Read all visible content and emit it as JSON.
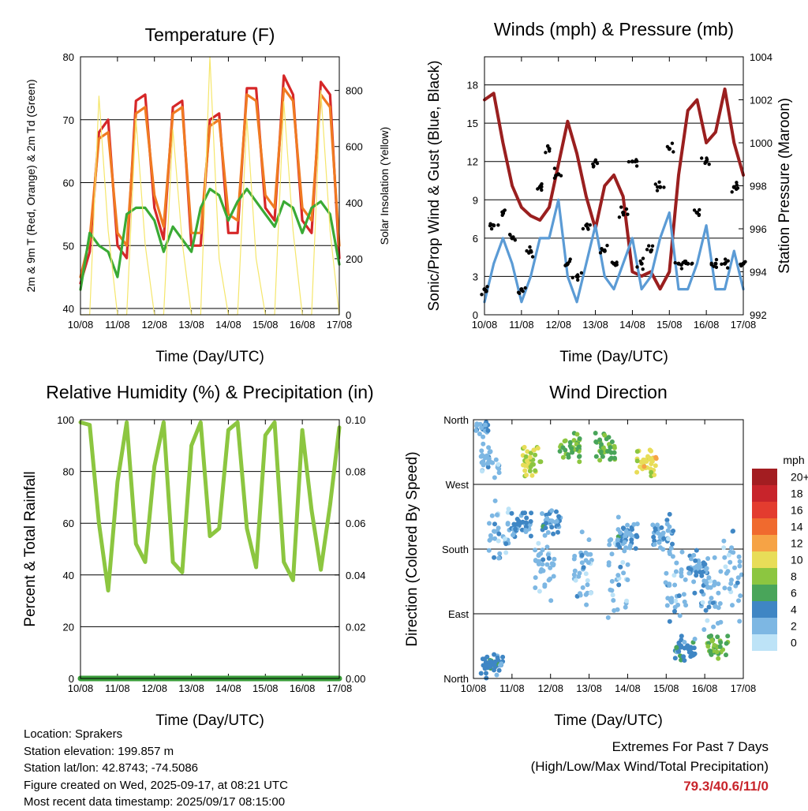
{
  "x_tick_labels": [
    "10/08",
    "11/08",
    "12/08",
    "13/08",
    "14/08",
    "15/08",
    "16/08",
    "17/08"
  ],
  "chart_data": [
    {
      "type": "line",
      "title": "Temperature (F)",
      "xlabel": "Time (Day/UTC)",
      "ylabel": "2m & 9m T (Red, Orange) & 2m Td (Green)",
      "ylabel_right": "Solar Insolation (Yellow)",
      "ylim": [
        39,
        80
      ],
      "yticks": [
        40,
        50,
        60,
        70,
        80
      ],
      "ylim_right": [
        0,
        920
      ],
      "yticks_right": [
        0,
        200,
        400,
        600,
        800
      ],
      "x": [
        "10/08 00",
        "10/08 06",
        "10/08 12",
        "10/08 18",
        "11/08 00",
        "11/08 06",
        "11/08 12",
        "11/08 18",
        "12/08 00",
        "12/08 06",
        "12/08 12",
        "12/08 18",
        "13/08 00",
        "13/08 06",
        "13/08 12",
        "13/08 18",
        "14/08 00",
        "14/08 06",
        "14/08 12",
        "14/08 18",
        "15/08 00",
        "15/08 06",
        "15/08 12",
        "15/08 18",
        "16/08 00",
        "16/08 06",
        "16/08 12",
        "16/08 18",
        "17/08 00"
      ],
      "series": [
        {
          "color": "#d62728",
          "values": [
            44,
            49,
            68,
            70,
            50,
            48,
            73,
            74,
            56,
            51,
            72,
            73,
            50,
            50,
            70,
            71,
            52,
            52,
            75,
            75,
            56,
            54,
            77,
            74,
            54,
            52,
            76,
            74,
            48
          ]
        },
        {
          "color": "#f07a22",
          "values": [
            45,
            51,
            67,
            68,
            52,
            50,
            71,
            72,
            58,
            53,
            71,
            72,
            52,
            52,
            69,
            70,
            55,
            54,
            74,
            73,
            58,
            56,
            75,
            73,
            56,
            54,
            74,
            72,
            50
          ]
        },
        {
          "color": "#3aaa35",
          "values": [
            43,
            52,
            50,
            49,
            45,
            55,
            56,
            56,
            54,
            49,
            53,
            51,
            49,
            56,
            59,
            58,
            54,
            57,
            59,
            57,
            55,
            53,
            57,
            56,
            52,
            56,
            57,
            55,
            47
          ]
        },
        {
          "color": "#f5e66b",
          "axis": "right",
          "values": [
            0,
            0,
            780,
            300,
            0,
            0,
            700,
            250,
            0,
            0,
            660,
            260,
            0,
            0,
            920,
            200,
            0,
            0,
            700,
            200,
            0,
            0,
            760,
            300,
            0,
            0,
            800,
            300,
            0
          ]
        }
      ]
    },
    {
      "type": "line",
      "title": "Winds (mph) & Pressure (mb)",
      "xlabel": "Time (Day/UTC)",
      "ylabel": "Sonic/Prop Wind & Gust (Blue, Black)",
      "ylabel_right": "Station Pressure (Maroon)",
      "ylim": [
        0,
        20.2
      ],
      "yticks": [
        0,
        3,
        6,
        9,
        12,
        15,
        18
      ],
      "ylim_right": [
        992,
        1004
      ],
      "yticks_right": [
        992,
        994,
        996,
        998,
        1000,
        1002,
        1004
      ],
      "x": [
        "10/08 00",
        "10/08 06",
        "10/08 12",
        "10/08 18",
        "11/08 00",
        "11/08 06",
        "11/08 12",
        "11/08 18",
        "12/08 00",
        "12/08 06",
        "12/08 12",
        "12/08 18",
        "13/08 00",
        "13/08 06",
        "13/08 12",
        "13/08 18",
        "14/08 00",
        "14/08 06",
        "14/08 12",
        "14/08 18",
        "15/08 00",
        "15/08 06",
        "15/08 12",
        "15/08 18",
        "16/08 00",
        "16/08 06",
        "16/08 12",
        "16/08 18",
        "17/08 00"
      ],
      "series": [
        {
          "color": "#9a1f1f",
          "axis": "right",
          "values": [
            1002,
            1002.3,
            1000,
            998,
            997,
            996.6,
            996.4,
            997,
            999,
            1001,
            999.5,
            997.5,
            996,
            998,
            998.5,
            997.5,
            994,
            993.8,
            994,
            993.2,
            994,
            998.5,
            1001.5,
            1002,
            1000,
            1000.5,
            1002.5,
            1000,
            998.5
          ]
        },
        {
          "color": "#5b9bd5",
          "values": [
            1,
            4,
            6,
            4,
            1,
            3,
            6,
            6,
            9,
            3,
            1,
            4,
            7,
            3,
            2,
            4,
            6,
            2,
            3,
            6,
            8,
            2,
            2,
            4,
            7,
            2,
            2,
            5,
            2
          ]
        },
        {
          "color": "#000000",
          "markers": "dots",
          "values": [
            2,
            7,
            8,
            6,
            2,
            5,
            10,
            13,
            11,
            4,
            3,
            7,
            12,
            5,
            4,
            8,
            12,
            4,
            5,
            10,
            13,
            4,
            4,
            8,
            12,
            4,
            4,
            10,
            4
          ]
        }
      ]
    },
    {
      "type": "line",
      "title": "Relative Humidity (%) & Precipitation (in)",
      "xlabel": "Time (Day/UTC)",
      "ylabel": "Percent & Total Rainfall",
      "ylim": [
        0,
        100
      ],
      "yticks": [
        0,
        20,
        40,
        60,
        80,
        100
      ],
      "ylim_right": [
        0,
        0.1
      ],
      "yticks_right": [
        "0.00",
        "0.02",
        "0.04",
        "0.06",
        "0.08",
        "0.10"
      ],
      "x": [
        "10/08 00",
        "10/08 06",
        "10/08 12",
        "10/08 18",
        "11/08 00",
        "11/08 06",
        "11/08 12",
        "11/08 18",
        "12/08 00",
        "12/08 06",
        "12/08 12",
        "12/08 18",
        "13/08 00",
        "13/08 06",
        "13/08 12",
        "13/08 18",
        "14/08 00",
        "14/08 06",
        "14/08 12",
        "14/08 18",
        "15/08 00",
        "15/08 06",
        "15/08 12",
        "15/08 18",
        "16/08 00",
        "16/08 06",
        "16/08 12",
        "16/08 18",
        "17/08 00"
      ],
      "series": [
        {
          "color": "#8cc640",
          "values": [
            99,
            98,
            60,
            34,
            76,
            99,
            52,
            45,
            82,
            99,
            45,
            41,
            90,
            99,
            55,
            58,
            96,
            99,
            58,
            43,
            94,
            99,
            45,
            38,
            96,
            65,
            42,
            67,
            97
          ]
        },
        {
          "color": "#3a9d3a",
          "axis": "right",
          "values": [
            0,
            0,
            0,
            0,
            0,
            0,
            0,
            0,
            0,
            0,
            0,
            0,
            0,
            0,
            0,
            0,
            0,
            0,
            0,
            0,
            0,
            0,
            0,
            0,
            0,
            0,
            0,
            0,
            0
          ]
        }
      ]
    },
    {
      "type": "scatter",
      "title": "Wind Direction",
      "xlabel": "Time (Day/UTC)",
      "ylabel": "Direction (Colored By Speed)",
      "ylim": [
        0,
        360
      ],
      "yticks": [
        "North",
        "East",
        "South",
        "West",
        "North"
      ],
      "colorbar": {
        "title": "mph",
        "labels": [
          "20+",
          "18",
          "16",
          "14",
          "12",
          "10",
          "8",
          "6",
          "4",
          "2",
          "0"
        ],
        "colors": [
          "#a31d21",
          "#c8242b",
          "#e33c2f",
          "#f06a2e",
          "#f6a345",
          "#e8dd58",
          "#8cc640",
          "#49a55a",
          "#3f86c4",
          "#7db7e3",
          "#bde3f7"
        ]
      },
      "clusters": [
        {
          "x": "10/08 03",
          "dir_mean": 350,
          "dir_spread": 25,
          "speed": 3
        },
        {
          "x": "10/08 10",
          "dir_mean": 300,
          "dir_spread": 30,
          "speed": 2
        },
        {
          "x": "10/08 16",
          "dir_mean": 200,
          "dir_spread": 60,
          "speed": 2
        },
        {
          "x": "10/08 12",
          "dir_mean": 20,
          "dir_spread": 20,
          "speed": 4
        },
        {
          "x": "11/08 06",
          "dir_mean": 215,
          "dir_spread": 25,
          "speed": 3
        },
        {
          "x": "11/08 13",
          "dir_mean": 300,
          "dir_spread": 30,
          "speed": 9
        },
        {
          "x": "11/08 20",
          "dir_mean": 150,
          "dir_spread": 60,
          "speed": 2
        },
        {
          "x": "12/08 00",
          "dir_mean": 215,
          "dir_spread": 25,
          "speed": 3
        },
        {
          "x": "12/08 12",
          "dir_mean": 320,
          "dir_spread": 30,
          "speed": 7
        },
        {
          "x": "12/08 20",
          "dir_mean": 150,
          "dir_spread": 80,
          "speed": 2
        },
        {
          "x": "13/08 10",
          "dir_mean": 320,
          "dir_spread": 30,
          "speed": 7
        },
        {
          "x": "13/08 18",
          "dir_mean": 150,
          "dir_spread": 90,
          "speed": 2
        },
        {
          "x": "14/08 00",
          "dir_mean": 200,
          "dir_spread": 30,
          "speed": 3
        },
        {
          "x": "14/08 12",
          "dir_mean": 300,
          "dir_spread": 25,
          "speed": 10
        },
        {
          "x": "14/08 22",
          "dir_mean": 200,
          "dir_spread": 40,
          "speed": 3
        },
        {
          "x": "15/08 06",
          "dir_mean": 130,
          "dir_spread": 90,
          "speed": 2
        },
        {
          "x": "15/08 12",
          "dir_mean": 40,
          "dir_spread": 25,
          "speed": 4
        },
        {
          "x": "15/08 20",
          "dir_mean": 150,
          "dir_spread": 40,
          "speed": 3
        },
        {
          "x": "16/08 04",
          "dir_mean": 120,
          "dir_spread": 60,
          "speed": 2
        },
        {
          "x": "16/08 08",
          "dir_mean": 45,
          "dir_spread": 25,
          "speed": 7
        },
        {
          "x": "16/08 18",
          "dir_mean": 140,
          "dir_spread": 80,
          "speed": 2
        }
      ]
    }
  ],
  "footer": {
    "location": "Location: Sprakers",
    "elevation": "Station elevation: 199.857 m",
    "latlon": "Station lat/lon: 42.8743; -74.5086",
    "created": "Figure created on Wed, 2025-09-17, at 08:21 UTC",
    "recent": "Most recent data timestamp: 2025/09/17 08:15:00"
  },
  "extremes": {
    "title": "Extremes For Past 7 Days",
    "subtitle": "(High/Low/Max Wind/Total Precipitation)",
    "values": "79.3/40.6/11/0"
  }
}
